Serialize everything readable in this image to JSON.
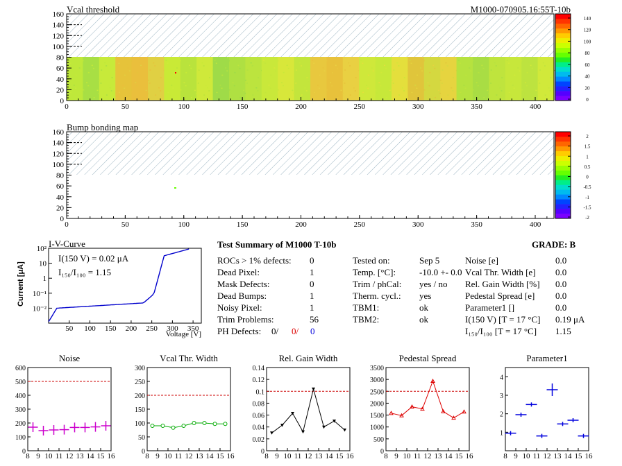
{
  "header": {
    "title_left": "Vcal threshold",
    "title_right": "M1000-070905.16:55T-10b"
  },
  "bump_title": "Bump bonding map",
  "palette": [
    "#7b00ff",
    "#5500ff",
    "#2222ff",
    "#0044ff",
    "#0088ff",
    "#00bbee",
    "#00ddcc",
    "#00ee88",
    "#22ee22",
    "#66ff00",
    "#99ff00",
    "#ccff00",
    "#eeee00",
    "#ffcc00",
    "#ff9900",
    "#ff6600",
    "#ff3300",
    "#ff0000"
  ],
  "colors": {
    "noise": "#cc00cc",
    "vcal": "#00aa00",
    "gain": "#000000",
    "pedestal": "#dd0000",
    "param": "#0000dd",
    "ref": "#cc0000",
    "iv": "#0000cc",
    "hatch": "#7f9fb0"
  },
  "maps": {
    "x_ticks": [
      "0",
      "50",
      "100",
      "150",
      "200",
      "250",
      "300",
      "350",
      "400"
    ],
    "y_ticks": [
      "0",
      "20",
      "40",
      "60",
      "80",
      "100",
      "120",
      "140",
      "160"
    ],
    "scale1": [
      "0",
      "20",
      "40",
      "60",
      "80",
      "100",
      "120",
      "140"
    ],
    "scale2": [
      "-2",
      "-1.5",
      "-1",
      "-0.5",
      "0",
      "0.5",
      "1",
      "1.5",
      "2"
    ],
    "roc_tones": [
      [
        "#bfe83a",
        "#a8df44",
        "#c7ea3a"
      ],
      [
        "#e6c33a",
        "#eabf3c",
        "#e0d043"
      ],
      [
        "#c9ea36",
        "#b9e33c",
        "#cfe93a"
      ],
      [
        "#9fdb48",
        "#afe042",
        "#bce43e"
      ],
      [
        "#c9e83a",
        "#d8e73a",
        "#c3e53c"
      ],
      [
        "#e8c83e",
        "#e8c13b",
        "#e9d042"
      ],
      [
        "#cfe83a",
        "#c7e83a",
        "#e4df3c"
      ],
      [
        "#e0c53b",
        "#d4d840",
        "#e6d43f"
      ],
      [
        "#b6e23f",
        "#a9dd44",
        "#bfe43d"
      ],
      [
        "#c7e73b",
        "#bde33f",
        "#d1e93a"
      ]
    ]
  },
  "iv": {
    "title": "I-V-Curve",
    "ylabel": "Current [μA]",
    "xlabel": "Voltage [V]",
    "x_ticks": [
      "50",
      "100",
      "150",
      "200",
      "250",
      "300",
      "350"
    ],
    "y_ticks": [
      "10²",
      "10",
      "1",
      "10⁻¹",
      "10⁻²"
    ],
    "annot1": "I(150 V) = 0.02 μA",
    "annot2": "I₁₅₀/I₁₀₀ =  1.15"
  },
  "summary": {
    "title": "Test Summary of M1000     T-10b",
    "grade": "GRADE:  B",
    "col1": [
      {
        "label": "ROCs > 1% defects:",
        "value": "0"
      },
      {
        "label": "Dead Pixel:",
        "value": "1"
      },
      {
        "label": "Mask Defects:",
        "value": "0"
      },
      {
        "label": "Dead Bumps:",
        "value": "1"
      },
      {
        "label": "Noisy Pixel:",
        "value": "1"
      },
      {
        "label": "Trim Problems:",
        "value": "56"
      }
    ],
    "ph_label": "PH Defects:",
    "ph_values": [
      "0/",
      "0/",
      "0"
    ],
    "col2": [
      {
        "label": "Tested on:",
        "value": "Sep 5"
      },
      {
        "label": "Temp. [°C]:",
        "value": "-10.0 +- 0.0"
      },
      {
        "label": "Trim / phCal:",
        "value": "yes / no"
      },
      {
        "label": "Therm. cycl.:",
        "value": "yes"
      },
      {
        "label": "TBM1:",
        "value": "ok"
      },
      {
        "label": "TBM2:",
        "value": "ok"
      }
    ],
    "col3": [
      {
        "label": "Noise [e]",
        "value": "0.0"
      },
      {
        "label": "Vcal Thr. Width [e]",
        "value": "0.0"
      },
      {
        "label": "Rel. Gain Width [%]",
        "value": "0.0"
      },
      {
        "label": "Pedestal Spread [e]",
        "value": "0.0"
      },
      {
        "label": "Parameter1 []",
        "value": "0.0"
      },
      {
        "label": "I(150 V) [T = 17 °C]",
        "value": "0.19 μA"
      },
      {
        "label": "I₁₅₀/I₁₀₀  [T = 17 °C]",
        "value": "1.15"
      }
    ]
  },
  "chart_data": [
    {
      "type": "scatter",
      "title": "Noise",
      "x": [
        8.5,
        9.5,
        10.5,
        11.5,
        12.5,
        13.5,
        14.5,
        15.5
      ],
      "values": [
        170,
        145,
        150,
        152,
        168,
        168,
        172,
        180
      ],
      "xlim": [
        8,
        16
      ],
      "ylim": [
        0,
        600
      ],
      "y_ticks": [
        0,
        100,
        200,
        300,
        400,
        500,
        600
      ],
      "ref": 500
    },
    {
      "type": "line",
      "title": "Vcal Thr. Width",
      "x": [
        8.5,
        9.5,
        10.5,
        11.5,
        12.5,
        13.5,
        14.5,
        15.5
      ],
      "values": [
        90,
        90,
        83,
        90,
        100,
        100,
        97,
        97
      ],
      "xlim": [
        8,
        16
      ],
      "ylim": [
        0,
        300
      ],
      "y_ticks": [
        0,
        50,
        100,
        150,
        200,
        250,
        300
      ],
      "ref": 200
    },
    {
      "type": "line",
      "title": "Rel. Gain Width",
      "x": [
        8.5,
        9.5,
        10.5,
        11.5,
        12.5,
        13.5,
        14.5,
        15.5
      ],
      "values": [
        0.03,
        0.043,
        0.063,
        0.032,
        0.104,
        0.04,
        0.05,
        0.035
      ],
      "xlim": [
        8,
        16
      ],
      "ylim": [
        0,
        0.14
      ],
      "y_ticks": [
        0,
        0.02,
        0.04,
        0.06,
        0.08,
        0.1,
        0.12,
        0.14
      ],
      "ref": 0.1
    },
    {
      "type": "line",
      "title": "Pedestal Spread",
      "x": [
        8.5,
        9.5,
        10.5,
        11.5,
        12.5,
        13.5,
        14.5,
        15.5
      ],
      "values": [
        1580,
        1480,
        1850,
        1760,
        2930,
        1650,
        1380,
        1640
      ],
      "xlim": [
        8,
        16
      ],
      "ylim": [
        0,
        3500
      ],
      "y_ticks": [
        0,
        500,
        1000,
        1500,
        2000,
        2500,
        3000,
        3500
      ],
      "ref": 2500
    },
    {
      "type": "scatter",
      "title": "Parameter1",
      "x": [
        8.5,
        9.5,
        10.5,
        11.5,
        12.5,
        13.5,
        14.5,
        15.5
      ],
      "values": [
        0.95,
        1.95,
        2.5,
        0.8,
        3.3,
        1.45,
        1.65,
        0.8
      ],
      "xlim": [
        8,
        16
      ],
      "ylim": [
        0,
        4.5
      ],
      "y_ticks": [
        1,
        2,
        3,
        4
      ],
      "ref": null
    }
  ],
  "common_x_ticks": [
    "8",
    "9",
    "10",
    "11",
    "12",
    "13",
    "14",
    "15",
    "16"
  ]
}
